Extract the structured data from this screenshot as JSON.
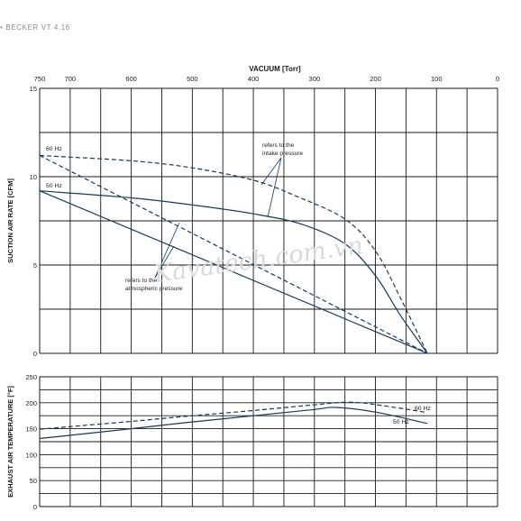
{
  "header": {
    "bullet": "•",
    "title": "BECKER VT 4.16"
  },
  "colors": {
    "line": "#163a5c",
    "grid": "#1a1a1a",
    "watermark": "#d9d9d9",
    "header": "#8a8a8a"
  },
  "watermark": "Kavatech.com.vn",
  "chart_data": [
    {
      "type": "line",
      "title": "",
      "top_axis_label": "VACUUM [Torr]",
      "ylabel": "SUCTION AIR RATE [CFM]",
      "xlim": [
        750,
        0
      ],
      "ylim": [
        0,
        15
      ],
      "x_ticks": [
        750,
        700,
        600,
        500,
        400,
        300,
        200,
        100,
        0
      ],
      "y_ticks": [
        0,
        5,
        10,
        15
      ],
      "grid": true,
      "series": [
        {
          "name": "60 Hz",
          "style": "dashed",
          "x": [
            750,
            600,
            500,
            400,
            330,
            250,
            200,
            160,
            115
          ],
          "y": [
            11.2,
            10.9,
            10.5,
            9.8,
            8.9,
            7.6,
            5.8,
            3.2,
            0
          ]
        },
        {
          "name": "50 Hz",
          "style": "solid",
          "x": [
            750,
            600,
            500,
            400,
            320,
            250,
            200,
            160,
            115
          ],
          "y": [
            9.2,
            8.8,
            8.4,
            7.9,
            7.3,
            6.2,
            4.4,
            2.2,
            0
          ]
        },
        {
          "name": "",
          "style": "dashed",
          "x": [
            750,
            115
          ],
          "y": [
            11.2,
            0
          ]
        },
        {
          "name": "",
          "style": "solid",
          "x": [
            750,
            115
          ],
          "y": [
            9.2,
            0
          ]
        }
      ],
      "series_labels": [
        "60 Hz",
        "50 Hz"
      ],
      "annotations": [
        {
          "line1": "refers to the",
          "line2": "intake pressure"
        },
        {
          "line1": "refers to the",
          "line2": "atmospheric pressure"
        }
      ]
    },
    {
      "type": "line",
      "title": "",
      "ylabel": "EXHAUST AIR TEMPERATURE [°F]",
      "xlim": [
        750,
        0
      ],
      "ylim": [
        0,
        250
      ],
      "y_ticks": [
        0,
        50,
        100,
        150,
        200,
        250
      ],
      "grid": true,
      "series": [
        {
          "name": "60 Hz",
          "style": "dashed",
          "x": [
            750,
            600,
            500,
            400,
            300,
            240,
            180,
            115
          ],
          "y": [
            149,
            164,
            175,
            185,
            196,
            201,
            193,
            181
          ]
        },
        {
          "name": "50 Hz",
          "style": "solid",
          "x": [
            750,
            600,
            500,
            400,
            300,
            265,
            200,
            115
          ],
          "y": [
            131,
            150,
            163,
            175,
            187,
            191,
            182,
            160
          ]
        }
      ],
      "series_labels": [
        "60 Hz",
        "50 Hz"
      ]
    }
  ]
}
